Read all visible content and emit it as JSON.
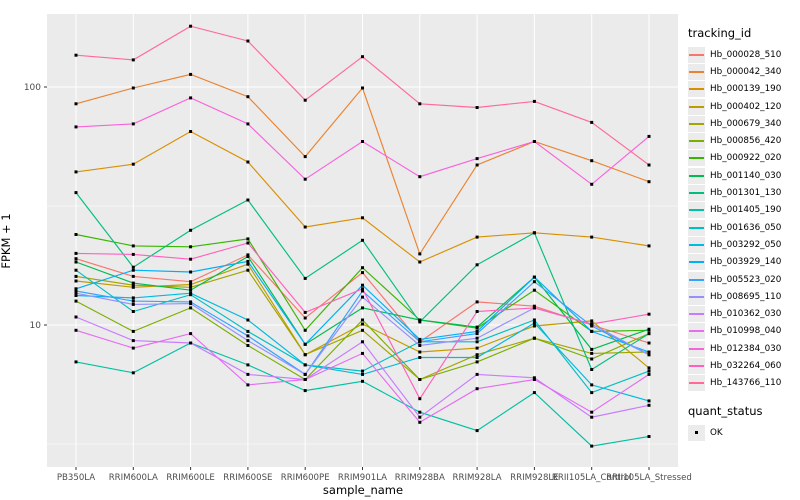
{
  "chart_data": {
    "type": "line",
    "xlabel": "sample_name",
    "ylabel": "FPKM + 1",
    "y_scale": "log10",
    "y_ticks": [
      10,
      100
    ],
    "y_minor_ticks": [
      3.162,
      31.62,
      316.2
    ],
    "ylim": [
      2.5,
      210
    ],
    "grid": "on",
    "legend_position": "right",
    "panel_bg": "#ebebeb",
    "grid_color": "#ffffff",
    "tick_label_color": "#4d4d4d",
    "point_color": "#000000",
    "legend": {
      "tracking_title": "tracking_id",
      "quant_title": "quant_status",
      "quant_value": "OK"
    },
    "categories": [
      "PB350LA",
      "RRIM600LA",
      "RRIM600LE",
      "RRIM600SE",
      "RRIM600PE",
      "RRIM901LA",
      "RRIM928BA",
      "RRIM928LA",
      "RRIM928LE",
      "RRII105LA_Control",
      "RRII105LA_Stressed"
    ],
    "series": [
      {
        "name": "Hb_000028_510",
        "color": "#F8766D",
        "values": [
          19.0,
          16.0,
          15.2,
          19.7,
          10.7,
          16.6,
          8.5,
          12.5,
          12.0,
          10.0,
          8.4
        ]
      },
      {
        "name": "Hb_000042_340",
        "color": "#EA8331",
        "values": [
          85,
          99,
          113,
          91,
          51,
          99,
          19.9,
          47,
          59,
          49,
          40
        ]
      },
      {
        "name": "Hb_000139_190",
        "color": "#D89000",
        "values": [
          44,
          47.4,
          65,
          48.4,
          25.8,
          28.2,
          18.4,
          23.4,
          24.4,
          23.4,
          21.5
        ]
      },
      {
        "name": "Hb_000402_120",
        "color": "#C09B00",
        "values": [
          15.3,
          14.4,
          14.8,
          18.0,
          7.5,
          10.1,
          7.7,
          8.0,
          9.9,
          10.4,
          6.6
        ]
      },
      {
        "name": "Hb_000679_340",
        "color": "#A3A500",
        "values": [
          16.0,
          14.7,
          14.4,
          17.0,
          7.5,
          9.5,
          5.9,
          7.5,
          8.8,
          7.6,
          7.7
        ]
      },
      {
        "name": "Hb_000856_420",
        "color": "#7CAE00",
        "values": [
          12.6,
          9.4,
          11.8,
          8.2,
          5.9,
          10.5,
          5.9,
          7.0,
          8.8,
          7.2,
          9.2
        ]
      },
      {
        "name": "Hb_000922_020",
        "color": "#39B600",
        "values": [
          24.0,
          21.5,
          21.3,
          23.0,
          9.5,
          17.4,
          10.5,
          9.7,
          14.0,
          9.4,
          9.5
        ]
      },
      {
        "name": "Hb_001140_030",
        "color": "#00BB4E",
        "values": [
          18.4,
          15.0,
          14.0,
          19.4,
          8.3,
          11.8,
          10.5,
          9.8,
          15.9,
          7.9,
          9.6
        ]
      },
      {
        "name": "Hb_001301_130",
        "color": "#00BF7D",
        "values": [
          36.0,
          17.5,
          25.0,
          33.5,
          15.7,
          22.7,
          10.3,
          17.9,
          24.4,
          6.5,
          9.2
        ]
      },
      {
        "name": "Hb_001405_190",
        "color": "#00C1A3",
        "values": [
          7.0,
          6.3,
          8.4,
          6.8,
          5.3,
          5.8,
          4.3,
          3.6,
          5.2,
          3.1,
          3.4
        ]
      },
      {
        "name": "Hb_001636_050",
        "color": "#00BFC4",
        "values": [
          17.0,
          11.4,
          13.4,
          9.4,
          6.8,
          6.4,
          8.5,
          8.5,
          10.5,
          5.2,
          6.4
        ]
      },
      {
        "name": "Hb_003292_050",
        "color": "#00BAE0",
        "values": [
          13.3,
          13.0,
          13.6,
          10.5,
          6.8,
          6.2,
          7.3,
          7.3,
          10.2,
          5.6,
          4.8
        ]
      },
      {
        "name": "Hb_003929_140",
        "color": "#00B0F6",
        "values": [
          14.2,
          17.0,
          16.7,
          18.5,
          8.3,
          14.7,
          8.7,
          9.4,
          15.9,
          9.4,
          7.7
        ]
      },
      {
        "name": "Hb_005523_020",
        "color": "#35A2FF",
        "values": [
          13.9,
          12.6,
          12.5,
          9.0,
          6.2,
          13.9,
          8.5,
          9.2,
          15.2,
          9.9,
          7.5
        ]
      },
      {
        "name": "Hb_008695_110",
        "color": "#9590FF",
        "values": [
          13.6,
          12.2,
          12.3,
          8.6,
          6.2,
          13.1,
          8.2,
          8.8,
          11.8,
          10.1,
          7.5
        ]
      },
      {
        "name": "Hb_010362_030",
        "color": "#C77CFF",
        "values": [
          10.8,
          8.6,
          8.4,
          6.2,
          5.9,
          8.5,
          4.1,
          6.2,
          6.0,
          4.1,
          4.6
        ]
      },
      {
        "name": "Hb_010998_040",
        "color": "#E76BF3",
        "values": [
          9.5,
          8.0,
          9.2,
          5.6,
          5.9,
          7.6,
          3.9,
          5.4,
          5.9,
          4.3,
          6.2
        ]
      },
      {
        "name": "Hb_012384_030",
        "color": "#FA62DB",
        "values": [
          68,
          70,
          90,
          70,
          41,
          59,
          42,
          50,
          59,
          39,
          62
        ]
      },
      {
        "name": "Hb_032264_060",
        "color": "#FF62BC",
        "values": [
          20.0,
          19.8,
          18.9,
          22.1,
          11.3,
          14.2,
          4.9,
          11.4,
          11.8,
          10.1,
          11.1
        ]
      },
      {
        "name": "Hb_143766_110",
        "color": "#FF6A98",
        "values": [
          136,
          130,
          180,
          156,
          88,
          134,
          85,
          82,
          87,
          71,
          47
        ]
      }
    ]
  }
}
